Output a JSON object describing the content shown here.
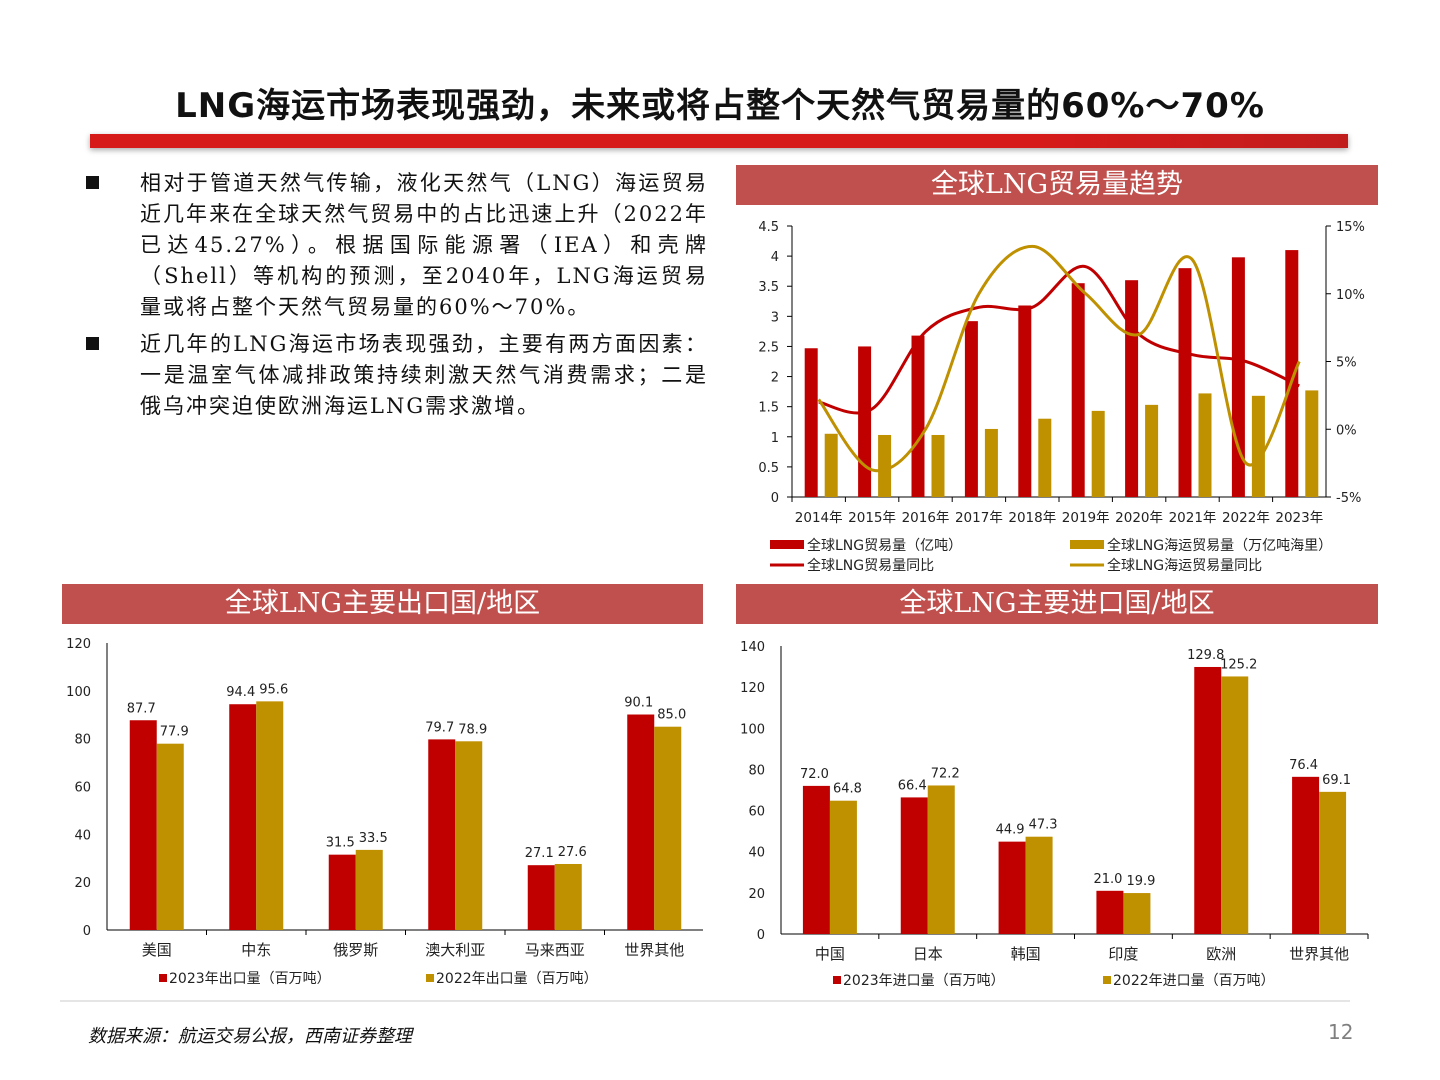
{
  "title": "LNG海运市场表现强劲，未来或将占整个天然气贸易量的60%～70%",
  "bullets": [
    "相对于管道天然气传输，液化天然气（LNG）海运贸易近几年来在全球天然气贸易中的占比迅速上升（2022年已达45.27%）。根据国际能源署（IEA）和壳牌（Shell）等机构的预测，至2040年，LNG海运贸易量或将占整个天然气贸易量的60%～70%。",
    "近几年的LNG海运市场表现强劲，主要有两方面因素：一是温室气体减排政策持续刺激天然气消费需求；二是俄乌冲突迫使欧洲海运LNG需求激增。"
  ],
  "source": "数据来源：航运交易公报，西南证券整理",
  "page_number": "12",
  "colors": {
    "red": "#c00000",
    "gold": "#bf9000",
    "header": "#c0504d"
  },
  "chart_data": [
    {
      "type": "bar",
      "title": "全球LNG贸易量趋势",
      "categories": [
        "2014年",
        "2015年",
        "2016年",
        "2017年",
        "2018年",
        "2019年",
        "2020年",
        "2021年",
        "2022年",
        "2023年"
      ],
      "series": [
        {
          "name": "全球LNG贸易量（亿吨）",
          "type": "bar",
          "axis": "left",
          "values": [
            2.47,
            2.5,
            2.68,
            2.92,
            3.18,
            3.55,
            3.6,
            3.8,
            3.98,
            4.1
          ]
        },
        {
          "name": "全球LNG海运贸易量（万亿吨海里）",
          "type": "bar",
          "axis": "left",
          "values": [
            1.05,
            1.03,
            1.03,
            1.13,
            1.3,
            1.43,
            1.53,
            1.72,
            1.68,
            1.77
          ]
        },
        {
          "name": "全球LNG贸易量同比",
          "type": "line",
          "axis": "right",
          "values": [
            2.0,
            1.5,
            7.2,
            9.0,
            9.0,
            12.0,
            7.0,
            5.5,
            5.0,
            3.2
          ]
        },
        {
          "name": "全球LNG海运贸易量同比",
          "type": "line",
          "axis": "right",
          "values": [
            2.2,
            -3.0,
            0.0,
            10.0,
            13.5,
            10.0,
            7.0,
            12.5,
            -2.5,
            5.0
          ]
        }
      ],
      "ylim": [
        0,
        4.5
      ],
      "yticks": [
        "0",
        "0.5",
        "1",
        "1.5",
        "2",
        "2.5",
        "3",
        "3.5",
        "4",
        "4.5"
      ],
      "y2lim": [
        -5,
        15
      ],
      "y2ticks": [
        "-5%",
        "0%",
        "5%",
        "10%",
        "15%"
      ],
      "legend": "bottom"
    },
    {
      "type": "bar",
      "title": "全球LNG主要出口国/地区",
      "categories": [
        "美国",
        "中东",
        "俄罗斯",
        "澳大利亚",
        "马来西亚",
        "世界其他"
      ],
      "series": [
        {
          "name": "2023年出口量（百万吨）",
          "values": [
            87.7,
            94.4,
            31.5,
            79.7,
            27.1,
            90.1
          ],
          "labels": [
            "87.7",
            "94.4",
            "31.5",
            "79.7",
            "27.1",
            "90.1"
          ]
        },
        {
          "name": "2022年出口量（百万吨）",
          "values": [
            77.9,
            95.6,
            33.5,
            78.9,
            27.6,
            85.0
          ],
          "labels": [
            "77.9",
            "95.6",
            "33.5",
            "78.9",
            "27.6",
            "85.0"
          ]
        }
      ],
      "ylim": [
        0,
        120
      ],
      "yticks": [
        "0",
        "20",
        "40",
        "60",
        "80",
        "100",
        "120"
      ],
      "legend": "bottom"
    },
    {
      "type": "bar",
      "title": "全球LNG主要进口国/地区",
      "categories": [
        "中国",
        "日本",
        "韩国",
        "印度",
        "欧洲",
        "世界其他"
      ],
      "series": [
        {
          "name": "2023年进口量（百万吨）",
          "values": [
            72.0,
            66.4,
            44.9,
            21.0,
            129.8,
            76.4
          ],
          "labels": [
            "72.0",
            "66.4",
            "44.9",
            "21.0",
            "129.8",
            "76.4"
          ]
        },
        {
          "name": "2022年进口量（百万吨）",
          "values": [
            64.8,
            72.2,
            47.3,
            19.9,
            125.2,
            69.1
          ],
          "labels": [
            "64.8",
            "72.2",
            "47.3",
            "19.9",
            "125.2",
            "69.1"
          ]
        }
      ],
      "ylim": [
        0,
        140
      ],
      "yticks": [
        "0",
        "20",
        "40",
        "60",
        "80",
        "100",
        "120",
        "140"
      ],
      "legend": "bottom"
    }
  ]
}
